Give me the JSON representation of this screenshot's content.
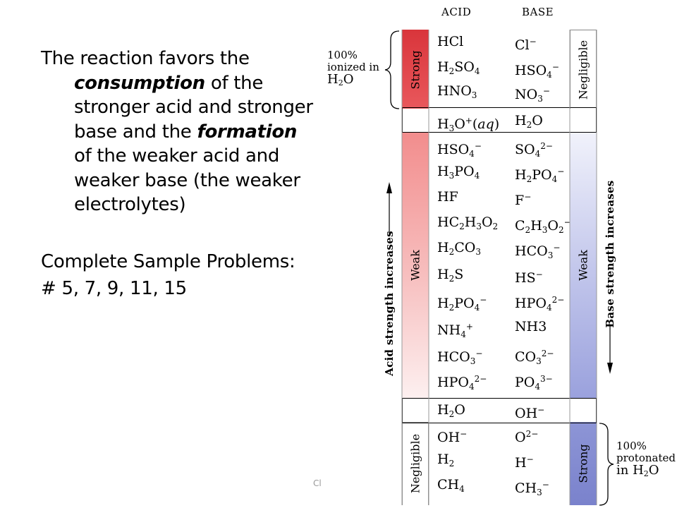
{
  "text": {
    "p1_a": "The reaction favors the ",
    "p1_b": "consumption",
    "p1_c": " of the stronger acid and stronger base and the ",
    "p1_d": "formation",
    "p1_e": " of the weaker acid and weaker base (the weaker electrolytes)",
    "p2": "Complete Sample Problems:",
    "p3": "# 5, 7, 9, 11, 15",
    "footer": "Cl"
  },
  "table": {
    "acid_header": "ACID",
    "base_header": "BASE",
    "strong_acid_label": "Strong",
    "weak_acid_label": "Weak",
    "negligible_acid_label": "Negligible",
    "negligible_base_label": "Negligible",
    "weak_base_label": "Weak",
    "strong_base_label": "Strong",
    "acid_axis": "Acid strength increases",
    "base_axis": "Base strength increases",
    "note_top": [
      "100%",
      "ionized in",
      "H",
      "2",
      "O"
    ],
    "note_bottom": [
      "100%",
      "protonated",
      "in H",
      "2",
      "O"
    ],
    "rows": [
      {
        "acid": [
          [
            "HCl",
            ""
          ]
        ],
        "base": [
          [
            "Cl",
            ""
          ],
          [
            "−",
            "sup"
          ]
        ]
      },
      {
        "acid": [
          [
            "H",
            ""
          ],
          [
            "2",
            "sub"
          ],
          [
            "SO",
            ""
          ],
          [
            "4",
            "sub"
          ]
        ],
        "base": [
          [
            "HSO",
            ""
          ],
          [
            "4",
            "sub"
          ],
          [
            "−",
            "sup"
          ]
        ]
      },
      {
        "acid": [
          [
            "HNO",
            ""
          ],
          [
            "3",
            "sub"
          ]
        ],
        "base": [
          [
            "NO",
            ""
          ],
          [
            "3",
            "sub"
          ],
          [
            "−",
            "sup"
          ]
        ]
      },
      {
        "acid": [
          [
            "H",
            ""
          ],
          [
            "3",
            "sub"
          ],
          [
            "O",
            ""
          ],
          [
            "+",
            "sup"
          ],
          [
            "(",
            ""
          ],
          [
            "aq",
            "i"
          ],
          [
            ")",
            ""
          ]
        ],
        "base": [
          [
            "H",
            ""
          ],
          [
            "2",
            "sub"
          ],
          [
            "O",
            ""
          ]
        ]
      },
      {
        "acid": [
          [
            "HSO",
            ""
          ],
          [
            "4",
            "sub"
          ],
          [
            "−",
            "sup"
          ]
        ],
        "base": [
          [
            "SO",
            ""
          ],
          [
            "4",
            "sub"
          ],
          [
            "2−",
            "sup"
          ]
        ]
      },
      {
        "acid": [
          [
            "H",
            ""
          ],
          [
            "3",
            "sub"
          ],
          [
            "PO",
            ""
          ],
          [
            "4",
            "sub"
          ]
        ],
        "base": [
          [
            "H",
            ""
          ],
          [
            "2",
            "sub"
          ],
          [
            "PO",
            ""
          ],
          [
            "4",
            "sub"
          ],
          [
            "−",
            "sup"
          ]
        ]
      },
      {
        "acid": [
          [
            "HF",
            ""
          ]
        ],
        "base": [
          [
            "F",
            ""
          ],
          [
            "−",
            "sup"
          ]
        ]
      },
      {
        "acid": [
          [
            "HC",
            ""
          ],
          [
            "2",
            "sub"
          ],
          [
            "H",
            ""
          ],
          [
            "3",
            "sub"
          ],
          [
            "O",
            ""
          ],
          [
            "2",
            "sub"
          ]
        ],
        "base": [
          [
            "C",
            ""
          ],
          [
            "2",
            "sub"
          ],
          [
            "H",
            ""
          ],
          [
            "3",
            "sub"
          ],
          [
            "O",
            ""
          ],
          [
            "2",
            "sub"
          ],
          [
            "−",
            "sup"
          ]
        ]
      },
      {
        "acid": [
          [
            "H",
            ""
          ],
          [
            "2",
            "sub"
          ],
          [
            "CO",
            ""
          ],
          [
            "3",
            "sub"
          ]
        ],
        "base": [
          [
            "HCO",
            ""
          ],
          [
            "3",
            "sub"
          ],
          [
            "−",
            "sup"
          ]
        ]
      },
      {
        "acid": [
          [
            "H",
            ""
          ],
          [
            "2",
            "sub"
          ],
          [
            "S",
            ""
          ]
        ],
        "base": [
          [
            "HS",
            ""
          ],
          [
            "−",
            "sup"
          ]
        ]
      },
      {
        "acid": [
          [
            "H",
            ""
          ],
          [
            "2",
            "sub"
          ],
          [
            "PO",
            ""
          ],
          [
            "4",
            "sub"
          ],
          [
            "−",
            "sup"
          ]
        ],
        "base": [
          [
            "HPO",
            ""
          ],
          [
            "4",
            "sub"
          ],
          [
            "2−",
            "sup"
          ]
        ]
      },
      {
        "acid": [
          [
            "NH",
            ""
          ],
          [
            "4",
            "sub"
          ],
          [
            "+",
            "sup"
          ]
        ],
        "base": [
          [
            "NH3",
            ""
          ]
        ]
      },
      {
        "acid": [
          [
            "HCO",
            ""
          ],
          [
            "3",
            "sub"
          ],
          [
            "−",
            "sup"
          ]
        ],
        "base": [
          [
            "CO",
            ""
          ],
          [
            "3",
            "sub"
          ],
          [
            "2−",
            "sup"
          ]
        ]
      },
      {
        "acid": [
          [
            "HPO",
            ""
          ],
          [
            "4",
            "sub"
          ],
          [
            "2−",
            "sup"
          ]
        ],
        "base": [
          [
            "PO",
            ""
          ],
          [
            "4",
            "sub"
          ],
          [
            "3−",
            "sup"
          ]
        ]
      },
      {
        "acid": [
          [
            "H",
            ""
          ],
          [
            "2",
            "sub"
          ],
          [
            "O",
            ""
          ]
        ],
        "base": [
          [
            "OH",
            ""
          ],
          [
            "−",
            "sup"
          ]
        ]
      },
      {
        "acid": [
          [
            "OH",
            ""
          ],
          [
            "−",
            "sup"
          ]
        ],
        "base": [
          [
            "O",
            ""
          ],
          [
            "2−",
            "sup"
          ]
        ]
      },
      {
        "acid": [
          [
            "H",
            ""
          ],
          [
            "2",
            "sub"
          ]
        ],
        "base": [
          [
            "H",
            ""
          ],
          [
            "−",
            "sup"
          ]
        ]
      },
      {
        "acid": [
          [
            "CH",
            ""
          ],
          [
            "4",
            "sub"
          ]
        ],
        "base": [
          [
            "CH",
            ""
          ],
          [
            "3",
            "sub"
          ],
          [
            "−",
            "sup"
          ]
        ]
      }
    ]
  }
}
